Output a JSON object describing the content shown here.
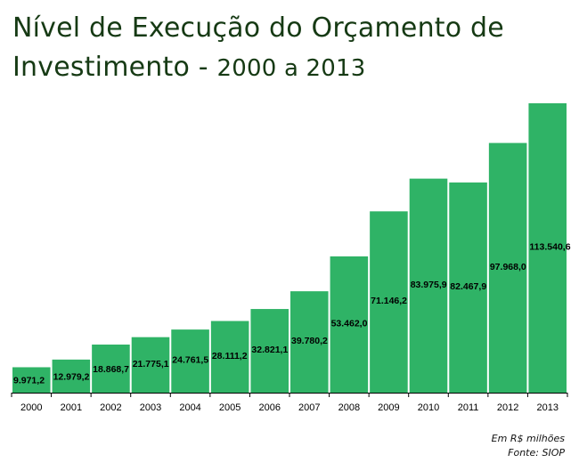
{
  "title": {
    "line1": "Nível de Execução do Orçamento de",
    "line2_main": "Investimento - ",
    "line2_years": "2000 a 2013"
  },
  "footnote": {
    "unit": "Em R$ milhões",
    "source": "Fonte: SIOP"
  },
  "colors": {
    "bar": "#2fb366",
    "title": "#163a14",
    "axis": "#000000"
  },
  "chart_data": {
    "type": "bar",
    "title": "Nível de Execução do Orçamento de Investimento - 2000 a 2013",
    "xlabel": "",
    "ylabel": "",
    "ylim": [
      0,
      120000
    ],
    "grid": false,
    "legend": "none",
    "categories": [
      "2000",
      "2001",
      "2002",
      "2003",
      "2004",
      "2005",
      "2006",
      "2007",
      "2008",
      "2009",
      "2010",
      "2011",
      "2012",
      "2013"
    ],
    "values": [
      9971.2,
      12979.2,
      18868.7,
      21775.1,
      24761.5,
      28111.2,
      32821.1,
      39780.2,
      53462.0,
      71146.2,
      83975.9,
      82467.9,
      97968.0,
      113540.6
    ],
    "data_labels": [
      "9.971,2",
      "12.979,2",
      "18.868,7",
      "21.775,1",
      "24.761,5",
      "28.111,2",
      "32.821,1",
      "39.780,2",
      "53.462,0",
      "71.146,2",
      "83.975,9",
      "82.467,9",
      "97.968,0",
      "113.540,6"
    ]
  }
}
